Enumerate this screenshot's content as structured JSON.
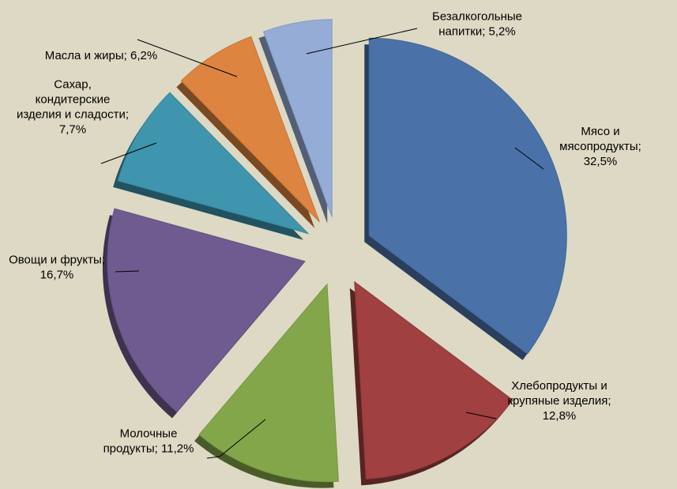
{
  "chart_data": {
    "type": "pie",
    "title": "",
    "exploded": true,
    "style": "3d",
    "legend": "none",
    "series": [
      {
        "values": [
          32.5,
          12.8,
          11.2,
          16.7,
          7.7,
          6.2,
          5.2
        ]
      }
    ],
    "slices": [
      {
        "name": "meat",
        "label_lines": [
          "Мясо и",
          "мясопродукты;",
          "32,5%"
        ],
        "value": 32.5,
        "color": "#4a72a8"
      },
      {
        "name": "bread",
        "label_lines": [
          "Хлебопродукты и",
          "крупяные изделия;",
          "12,8%"
        ],
        "value": 12.8,
        "color": "#a04040"
      },
      {
        "name": "dairy",
        "label_lines": [
          "Молочные",
          "продукты; 11,2%"
        ],
        "value": 11.2,
        "color": "#84a64a"
      },
      {
        "name": "vegetables",
        "label_lines": [
          "Овощи и фрукты;",
          "16,7%"
        ],
        "value": 16.7,
        "color": "#6f5b90"
      },
      {
        "name": "sugar",
        "label_lines": [
          "Сахар,",
          "кондитерские",
          "изделия и сладости;",
          "7,7%"
        ],
        "value": 7.7,
        "color": "#3e95ad"
      },
      {
        "name": "oils",
        "label_lines": [
          "Масла и жиры; 6,2%"
        ],
        "value": 6.2,
        "color": "#dc8440"
      },
      {
        "name": "drinks",
        "label_lines": [
          "Безалкогольные",
          "напитки; 5,2%"
        ],
        "value": 5.2,
        "color": "#95acd6"
      }
    ]
  }
}
